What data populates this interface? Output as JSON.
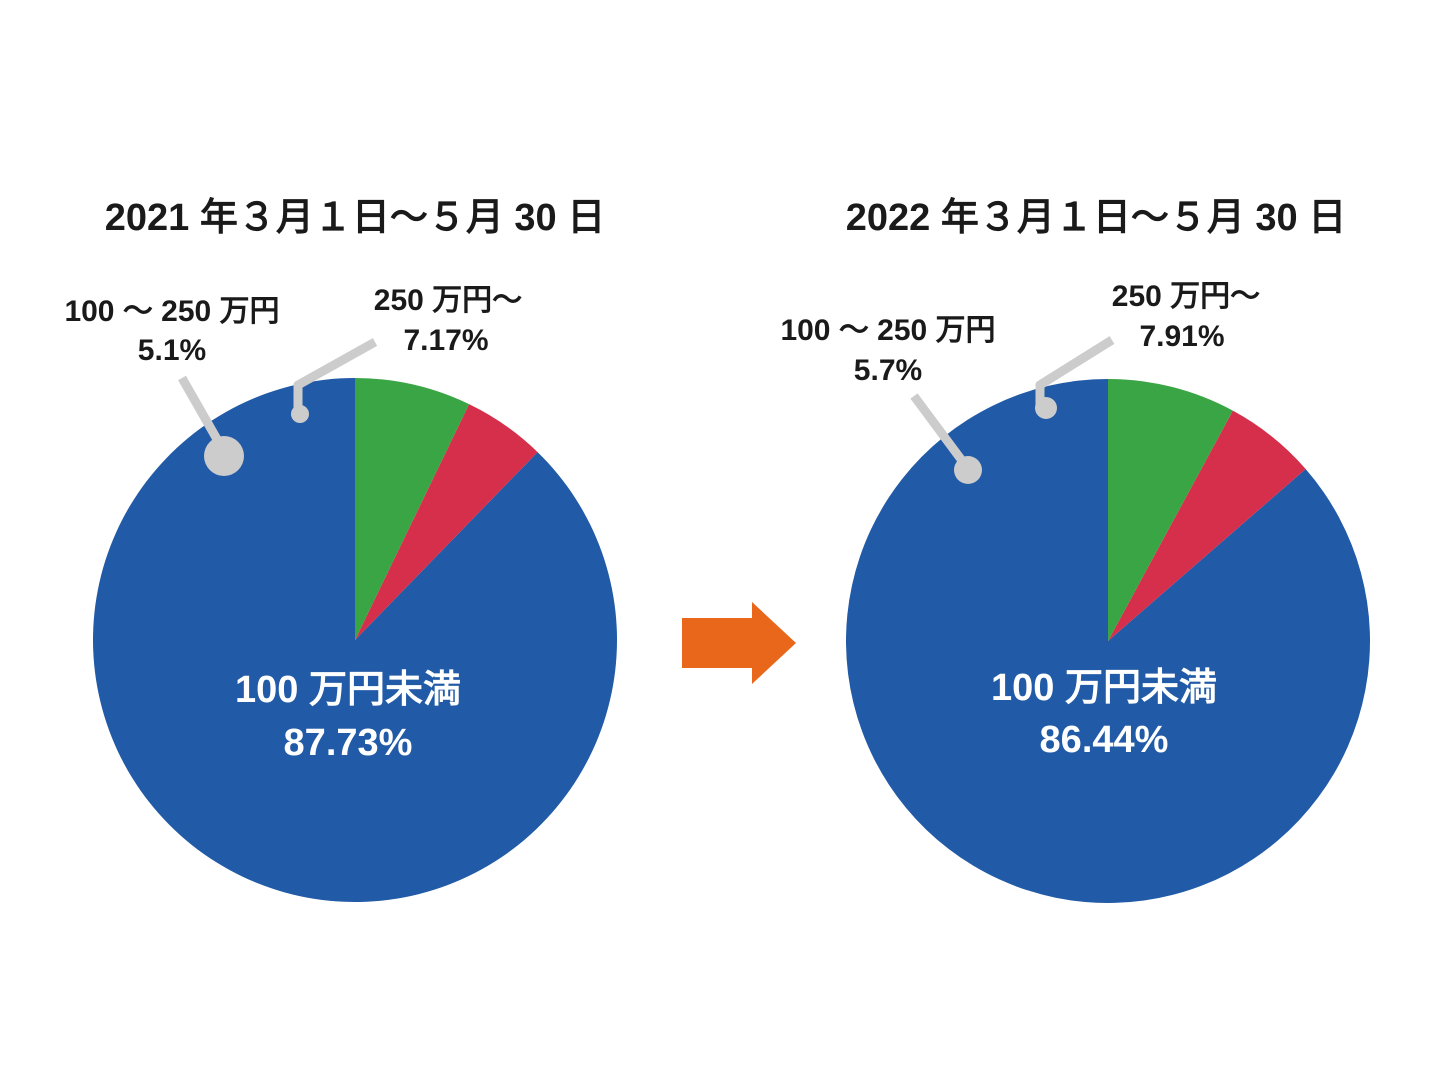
{
  "arrow_color": "#e8671b",
  "leader_color": "#cccccc",
  "chart_data": [
    {
      "type": "pie",
      "title": "2021 年３月１日～５月 30 日",
      "start": "top",
      "direction": "counterclockwise",
      "slices": [
        {
          "label": "100 万円未満",
          "value": 87.73,
          "value_text": "87.73%",
          "color": "#215aa6",
          "label_style": "inside"
        },
        {
          "label": "100 ～ 250 万円",
          "value": 5.1,
          "value_text": "5.1%",
          "color": "#d62f4b",
          "label_style": "callout"
        },
        {
          "label": "250 万円～",
          "value": 7.17,
          "value_text": "7.17%",
          "color": "#3aa545",
          "label_style": "callout"
        }
      ]
    },
    {
      "type": "pie",
      "title": "2022 年３月１日～５月 30 日",
      "start": "top",
      "direction": "counterclockwise",
      "slices": [
        {
          "label": "100 万円未満",
          "value": 86.44,
          "value_text": "86.44%",
          "color": "#215aa6",
          "label_style": "inside"
        },
        {
          "label": "100 ～ 250 万円",
          "value": 5.7,
          "value_text": "5.7%",
          "color": "#d62f4b",
          "label_style": "callout"
        },
        {
          "label": "250 万円～",
          "value": 7.91,
          "value_text": "7.91%",
          "color": "#3aa545",
          "label_style": "callout"
        }
      ]
    }
  ]
}
